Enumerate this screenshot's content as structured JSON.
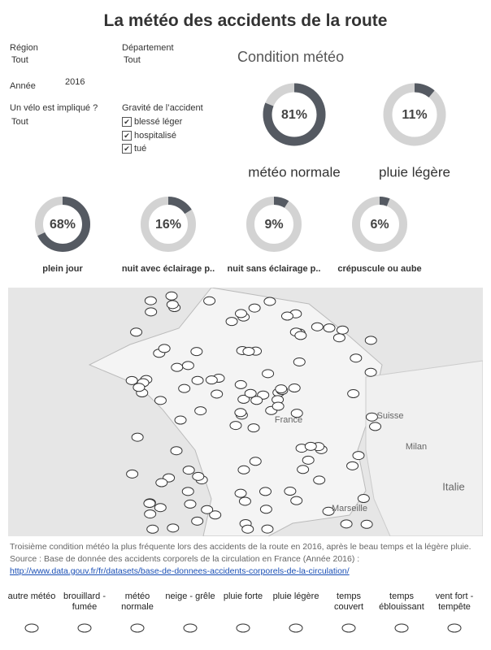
{
  "header": {
    "title": "La météo des accidents de la route"
  },
  "filters": {
    "region": {
      "label": "Région",
      "value": "Tout"
    },
    "departement": {
      "label": "Département",
      "value": "Tout"
    },
    "annee": {
      "label": "Année",
      "value": "2016"
    },
    "velo": {
      "label": "Un vélo est impliqué ?",
      "value": "Tout"
    },
    "gravite": {
      "label": "Gravité de l’accident",
      "options": [
        "blessé léger",
        "hospitalisé",
        "tué"
      ]
    }
  },
  "weather_heading": "Condition météo",
  "chart_data": [
    {
      "type": "donut",
      "label": "météo normale",
      "values": [
        81
      ],
      "value_labels": [
        "81%"
      ],
      "color": "#555a62"
    },
    {
      "type": "donut",
      "label": "pluie légère",
      "values": [
        11
      ],
      "value_labels": [
        "11%"
      ],
      "color": "#555a62"
    },
    {
      "type": "donut",
      "label": "plein jour",
      "values": [
        68
      ],
      "value_labels": [
        "68%"
      ],
      "color": "#555a62"
    },
    {
      "type": "donut",
      "label": "nuit avec éclairage p..",
      "values": [
        16
      ],
      "value_labels": [
        "16%"
      ],
      "color": "#555a62"
    },
    {
      "type": "donut",
      "label": "nuit sans éclairage p..",
      "values": [
        9
      ],
      "value_labels": [
        "9%"
      ],
      "color": "#555a62"
    },
    {
      "type": "donut",
      "label": "crépuscule ou aube",
      "values": [
        6
      ],
      "value_labels": [
        "6%"
      ],
      "color": "#555a62"
    }
  ],
  "map": {
    "labels": [
      "France",
      "Suisse",
      "Milan",
      "Italie",
      "Marseille"
    ]
  },
  "note": {
    "text": "Troisième condition météo la plus fréquente lors des accidents de la route en 2016, après le beau temps et la légère pluie. Source : Base de donnée des accidents corporels de la circulation en France (Année 2016) :",
    "link": "http://www.data.gouv.fr/fr/datasets/base-de-donnees-accidents-corporels-de-la-circulation/"
  },
  "legend": [
    "autre météo",
    "brouillard - fumée",
    "météo normale",
    "neige - grêle",
    "pluie forte",
    "pluie légère",
    "temps couvert",
    "temps éblouissant",
    "vent fort - tempête"
  ]
}
